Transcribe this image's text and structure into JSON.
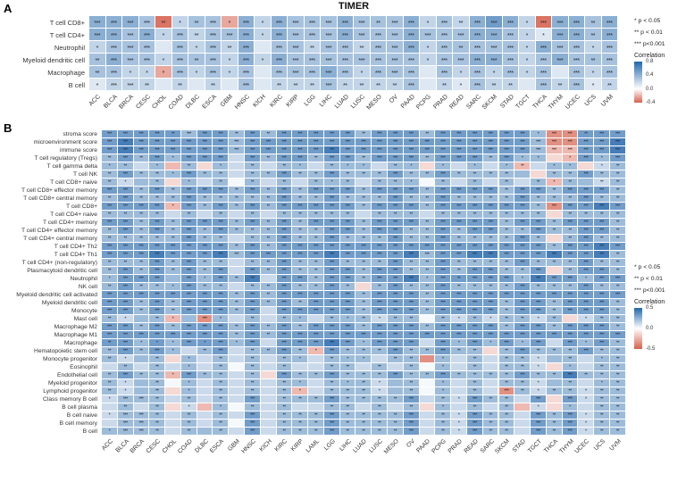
{
  "figure": {
    "panel_a_label": "A",
    "panel_b_label": "B",
    "title_a": "TIMER"
  },
  "legend_a": {
    "sig": [
      "* p < 0.05",
      "** p < 0.01",
      "*** p<0.001"
    ],
    "colorbar_title": "Correlation",
    "ticks": [
      "0.8",
      "0.4",
      "0.0",
      "-0.4"
    ]
  },
  "legend_b": {
    "sig": [
      "* p < 0.05",
      "** p < 0.01",
      "*** p<0.001"
    ],
    "colorbar_title": "Correlation",
    "ticks": [
      "0.5",
      "0.0",
      "-0.5"
    ]
  },
  "chart_data": [
    {
      "type": "heatmap",
      "panel": "A",
      "title": "TIMER",
      "legend_position": "right",
      "columns": [
        "ACC",
        "BLCA",
        "BRCA",
        "CESC",
        "CHOL",
        "COAD",
        "DLBC",
        "ESCA",
        "GBM",
        "HNSC",
        "KICH",
        "KIRC",
        "KIRP",
        "LGG",
        "LIHC",
        "LUAD",
        "LUSC",
        "MESO",
        "OV",
        "PAAD",
        "PCPG",
        "PRAD",
        "READ",
        "SARC",
        "SKCM",
        "STAD",
        "TGCT",
        "THCA",
        "THYM",
        "UCEC",
        "UCS",
        "UVM"
      ],
      "rows": [
        "T cell CD8+",
        "T cell CD4+",
        "Neutrophil",
        "Myeloid dendritic cell",
        "Macrophage",
        "B cell"
      ],
      "code_map": {
        "0": 0.02,
        "1": 0.12,
        "2": 0.22,
        "3": 0.32,
        "4": 0.42,
        "5": 0.52,
        "6": 0.62,
        "a": -0.12,
        "b": -0.22,
        "c": -0.35
      },
      "color_scale": {
        "min": -0.4,
        "max": 0.8,
        "positive": "#2166ac",
        "negative": "#d6604d",
        "zero": "#ffffff"
      },
      "values_encoded": [
        "4443c233b424333433342324542c4434",
        "44342323342433343334333443214434",
        "23331323241332332334233333243323",
        "34332333242433333333233443234333",
        "3322b323231333432333132323231323",
        "12221212131222322223121322132312"
      ],
      "stars_encoded": [
        "33332123131333333233132333133323",
        "33331323331333333333333333113323",
        "13330313230332332333132333133313",
        "23331323131333333333133333133323",
        "23111313130333331333031313130313",
        "13320202030222322223021322032312"
      ]
    },
    {
      "type": "heatmap",
      "panel": "B",
      "title": "",
      "legend_position": "right",
      "columns": [
        "ACC",
        "BLCA",
        "BRCA",
        "CESC",
        "CHOL",
        "COAD",
        "DLBC",
        "ESCA",
        "GBM",
        "HNSC",
        "KICH",
        "KIRC",
        "KIRP",
        "LAML",
        "LGG",
        "LIHC",
        "LUAD",
        "LUSC",
        "MESO",
        "OV",
        "PAAD",
        "PCPG",
        "PRAD",
        "READ",
        "SARC",
        "SKCM",
        "STAD",
        "TGCT",
        "THCA",
        "THYM",
        "UCEC",
        "UCS",
        "UVM"
      ],
      "rows": [
        "stroma score",
        "microenvironment score",
        "immune score",
        "T cell regulatory (Tregs)",
        "T cell gamma delta",
        "T cell NK",
        "T cell CD8+ naive",
        "T cell CD8+ effector memory",
        "T cell CD8+ central memory",
        "T cell CD8+",
        "T cell CD4+ naive",
        "T cell CD4+ memory",
        "T cell CD4+ effector memory",
        "T cell CD4+ central memory",
        "T cell CD4+ Th2",
        "T cell CD4+ Th1",
        "T cell CD4+ (non-regulatory)",
        "Plasmacytoid dendritic cell",
        "Neutrophil",
        "NK cell",
        "Myeloid dendritic cell activated",
        "Myeloid dendritic cell",
        "Monocyte",
        "Mast cell",
        "Macrophage M2",
        "Macrophage M1",
        "Macrophage",
        "Hematopoietic stem cell",
        "Monocyte progenitor",
        "Eosinophil",
        "Endothelial cell",
        "Myeloid progenitor",
        "Lymphoid progenitor",
        "Class memory B cell",
        "B cell plasma",
        "B cell naive",
        "B cell memory",
        "B cell"
      ],
      "code_map": {
        "0": 0.02,
        "1": 0.12,
        "2": 0.22,
        "3": 0.32,
        "4": 0.42,
        "5": 0.52,
        "6": 0.62,
        "a": -0.12,
        "b": -0.22,
        "c": -0.35
      },
      "color_scale": {
        "min": -0.5,
        "max": 0.5,
        "positive": "#2166ac",
        "negative": "#d6604d",
        "zero": "#ffffff"
      },
      "values_encoded": [
        "3333323323233333233323333332cc333",
        "3433333323333333333333333332cc334",
        "3433333323333343333333333332bb334",
        "2323233313233233233323332322ab323",
        "2212b2a2121221222122a21212b122a12",
        "232223221223223222322322222a22322",
        "2122a21202121222122202121212b2212",
        "332323332323233323332333323323332",
        "232223222223223222322322223222322",
        "3333b32323233333233323333332c3343",
        "2222121212122222122212222222a2222",
        "332323332323233323332333323323332",
        "232323232223223323322323322322332",
        "2222232212232232223223222232a2322",
        "333333332323333333333333333323343",
        "333433342333334333342334433343342",
        "222323221223223222322322223222322",
        "2323232313232233233223233223a2332",
        "233323232413323323342333332433233",
        "2322232212232232a2322322223222322",
        "333333332323333323332333333333333",
        "332323332323233323332333323323332",
        "332323332313333323332333323323332",
        "2122b2c2121221222122021212212a122",
        "332323332323233323332333323323332",
        "333333332323333333333333333333333",
        "332323332313334323331323232313232",
        "2323212312232b3222322322a23222322",
        "2122a212121221222122c212122122122",
        "1212121202121122121202121221a2122",
        "2322b32212a3223222322322223224222",
        "212202121212212221220212122122122",
        "2122a2121212b122212202121c2122122",
        "1222121213122232222312132213a3122",
        "1212a1b2021211221212a21212b1a2122",
        "122212121312223222231213221323122",
        "122212120312223222231213221323122",
        "222212221312223222231213221323122"
      ],
      "stars_encoded": [
        "333323332323333323332333333133233",
        "333333333333333333333333333333333",
        "333333333333333333333333333333333",
        "232313330323323323332333231101313",
        "120102010202102110210101012011012",
        "232213220223223222322322220022322",
        "210201020202021202210202020212022",
        "332323332323233323332333323323332",
        "232223222223223222322322223222322",
        "333313232323333323332333333233333",
        "222202020202222202220222222202222",
        "332323332323233323332333323323332",
        "232323232223223323322323322322332",
        "222223220223223222322322223202322",
        "333333332323333333333333333323333",
        "333333333333333333333333333333332",
        "222323220223223222322322223222322",
        "232323230323223323322323322302332",
        "133303132303323323331323331333133",
        "232213220223223202322322223222322",
        "333333332323333323332333333333333",
        "332323332323233323332333323323332",
        "332323332303333323332333323323332",
        "210210310202102121220212122120122",
        "332323332323233323332333323323332",
        "333333332323333333333333333333333",
        "231113131303333313330313131303132",
        "232310230223213222322322023222322",
        "210201020202102110220102022102012",
        "020201020202002202020102022101022",
        "232213220203223222322322223223222",
        "210201020202102121020102022102012",
        "210201020202102221020102032122122",
        "133202020302223222230213220303122",
        "020201010202002202020102020101022",
        "133202020302223222230213220323122",
        "033202020302223222230213220323122",
        "133202020302223222230213220323122"
      ]
    }
  ]
}
